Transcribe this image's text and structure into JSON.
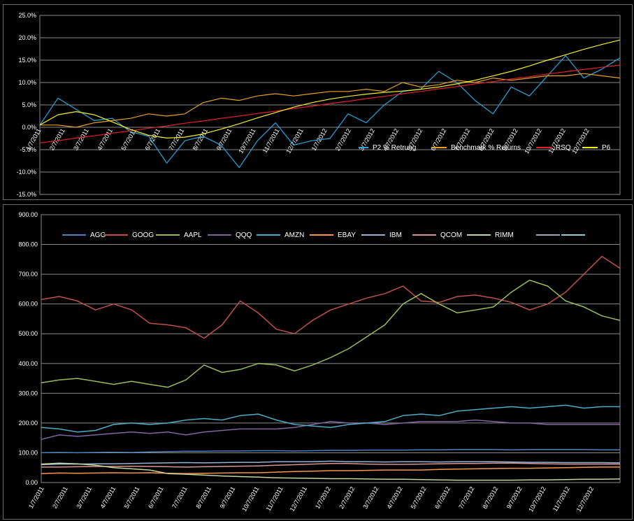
{
  "chart_data": [
    {
      "type": "line",
      "title": "",
      "xlabel": "",
      "ylabel": "",
      "ylim": [
        -15,
        25
      ],
      "yticks": [
        "-15.0%",
        "-10.0%",
        "-5.0%",
        "0.0%",
        "5.0%",
        "10.0%",
        "15.0%",
        "20.0%",
        "25.0%"
      ],
      "xticks": [
        "1/7/2011",
        "2/7/2011",
        "3/7/2011",
        "4/7/2011",
        "5/7/2011",
        "6/7/2011",
        "7/7/2011",
        "8/7/2011",
        "9/7/2011",
        "10/7/2011",
        "11/7/2011",
        "12/7/2011",
        "1/7/2012",
        "2/7/2012",
        "3/7/2012",
        "4/7/2012",
        "5/7/2012",
        "6/7/2012",
        "7/7/2012",
        "8/7/2012",
        "9/7/2012",
        "10/7/2012",
        "11/7/2012",
        "12/7/2012"
      ],
      "grid": true,
      "legend": "inside-bottom-right",
      "series": [
        {
          "name": "P2 % Retrung",
          "color": "#29a8e0",
          "values": [
            0.5,
            6.5,
            4,
            1.5,
            2,
            -1,
            -2,
            -8,
            -3,
            -2,
            -4,
            -9,
            -3,
            1,
            -4,
            -3,
            -2.5,
            3,
            1,
            5,
            8,
            8.5,
            12.5,
            10,
            6,
            3,
            9,
            7,
            11.5,
            16,
            11,
            13,
            15.5
          ]
        },
        {
          "name": "Benchmark % Returns",
          "color": "#e8a020",
          "values": [
            0.5,
            0.5,
            0,
            1,
            1.5,
            2,
            3,
            2.5,
            3,
            5.5,
            6.5,
            6,
            7,
            7.5,
            7,
            7.5,
            8,
            8,
            8.5,
            8,
            10,
            9,
            9.5,
            10.5,
            10,
            11,
            10.5,
            11,
            11.5,
            11.5,
            12,
            11.5,
            11
          ]
        },
        {
          "name": "RSQ",
          "color": "#e0202a",
          "values": [
            -3.5,
            -3,
            -2.4,
            -1.9,
            -1.3,
            -0.8,
            -0.2,
            0.3,
            0.9,
            1.4,
            2,
            2.5,
            3.1,
            3.6,
            4.2,
            4.7,
            5.3,
            5.8,
            6.4,
            6.9,
            7.5,
            8,
            8.6,
            9.1,
            9.7,
            10.2,
            10.8,
            11.3,
            11.9,
            12.4,
            12.9,
            13.4,
            13.9
          ]
        },
        {
          "name": "P6",
          "color": "#f2f020",
          "values": [
            0.5,
            2.8,
            3.5,
            2.8,
            1.2,
            -0.5,
            -1.8,
            -2.4,
            -2.2,
            -1.5,
            -0.4,
            0.8,
            2.1,
            3.3,
            4.5,
            5.5,
            6.3,
            6.9,
            7.4,
            7.8,
            8.1,
            8.5,
            9,
            9.7,
            10.5,
            11.5,
            12.5,
            13.7,
            15,
            16.2,
            17.4,
            18.5,
            19.5
          ]
        }
      ]
    },
    {
      "type": "line",
      "title": "",
      "xlabel": "",
      "ylabel": "",
      "ylim": [
        0,
        900
      ],
      "yticks": [
        "0.00",
        "100.00",
        "200.00",
        "300.00",
        "400.00",
        "500.00",
        "600.00",
        "700.00",
        "800.00",
        "900.00"
      ],
      "xticks": [
        "1/7/2011",
        "2/7/2011",
        "3/7/2011",
        "4/7/2011",
        "5/7/2011",
        "6/7/2011",
        "7/7/2011",
        "8/7/2011",
        "9/7/2011",
        "10/7/2011",
        "11/7/2011",
        "12/7/2011",
        "1/7/2012",
        "2/7/2012",
        "3/7/2012",
        "4/7/2012",
        "5/7/2012",
        "6/7/2012",
        "7/7/2012",
        "8/7/2012",
        "9/7/2012",
        "10/7/2012",
        "11/7/2012",
        "12/7/2012"
      ],
      "grid": true,
      "legend": "top",
      "series": [
        {
          "name": "AGG",
          "color": "#4f81bd",
          "values": [
            100,
            101,
            100,
            101,
            102,
            101,
            103,
            104,
            105,
            105,
            106,
            106,
            107,
            107,
            106,
            107,
            108,
            108,
            109,
            109,
            109,
            110,
            110,
            111,
            111,
            111,
            110,
            111,
            111,
            111,
            111,
            110,
            110
          ]
        },
        {
          "name": "GOOG",
          "color": "#c0504d",
          "values": [
            615,
            625,
            610,
            580,
            600,
            580,
            535,
            530,
            520,
            485,
            530,
            610,
            570,
            515,
            500,
            545,
            580,
            600,
            620,
            635,
            660,
            610,
            605,
            625,
            630,
            620,
            605,
            580,
            600,
            640,
            700,
            760,
            720
          ]
        },
        {
          "name": "AAPL",
          "color": "#9bbb59",
          "values": [
            335,
            345,
            350,
            340,
            330,
            340,
            330,
            320,
            345,
            395,
            370,
            380,
            400,
            395,
            375,
            395,
            420,
            450,
            490,
            530,
            600,
            635,
            600,
            570,
            580,
            590,
            640,
            680,
            660,
            610,
            590,
            560,
            545
          ]
        },
        {
          "name": "QQQ",
          "color": "#8064a2",
          "values": [
            145,
            160,
            155,
            160,
            165,
            170,
            165,
            170,
            160,
            170,
            175,
            180,
            180,
            180,
            185,
            195,
            205,
            200,
            200,
            195,
            200,
            205,
            205,
            205,
            210,
            205,
            200,
            200,
            195,
            195,
            195,
            195,
            195
          ]
        },
        {
          "name": "AMZN",
          "color": "#4bacc6",
          "values": [
            185,
            180,
            170,
            175,
            195,
            200,
            195,
            200,
            210,
            215,
            210,
            225,
            230,
            210,
            195,
            190,
            185,
            195,
            200,
            205,
            225,
            230,
            225,
            240,
            245,
            250,
            255,
            250,
            255,
            260,
            250,
            255,
            255
          ]
        },
        {
          "name": "EBAY",
          "color": "#f79646",
          "values": [
            30,
            32,
            31,
            32,
            33,
            32,
            33,
            31,
            30,
            31,
            32,
            33,
            33,
            35,
            37,
            38,
            40,
            40,
            41,
            42,
            42,
            42,
            44,
            45,
            46,
            47,
            48,
            48,
            49,
            50,
            51,
            52,
            52
          ]
        },
        {
          "name": "IBM",
          "color": "#95b3d7",
          "values": [
            60,
            62,
            62,
            63,
            63,
            64,
            65,
            66,
            67,
            66,
            67,
            68,
            68,
            70,
            70,
            70,
            72,
            70,
            70,
            69,
            70,
            70,
            69,
            70,
            70,
            70,
            69,
            68,
            68,
            67,
            67,
            67,
            66
          ]
        },
        {
          "name": "QCOM",
          "color": "#d99694",
          "values": [
            52,
            52,
            53,
            54,
            54,
            55,
            54,
            53,
            52,
            53,
            54,
            55,
            56,
            58,
            60,
            62,
            64,
            64,
            62,
            61,
            61,
            62,
            63,
            64,
            64,
            65,
            65,
            64,
            63,
            62,
            62,
            62,
            62
          ]
        },
        {
          "name": "RIMM",
          "color": "#c3d69b",
          "values": [
            62,
            65,
            63,
            58,
            50,
            46,
            42,
            30,
            28,
            25,
            22,
            20,
            18,
            16,
            15,
            14,
            13,
            13,
            12,
            11,
            11,
            10,
            9,
            8,
            8,
            8,
            8,
            9,
            9,
            10,
            11,
            11,
            12
          ]
        },
        {
          "name": "",
          "color": "#b2a1c7",
          "values": []
        },
        {
          "name": "",
          "color": "#93cddd",
          "values": []
        }
      ]
    }
  ]
}
